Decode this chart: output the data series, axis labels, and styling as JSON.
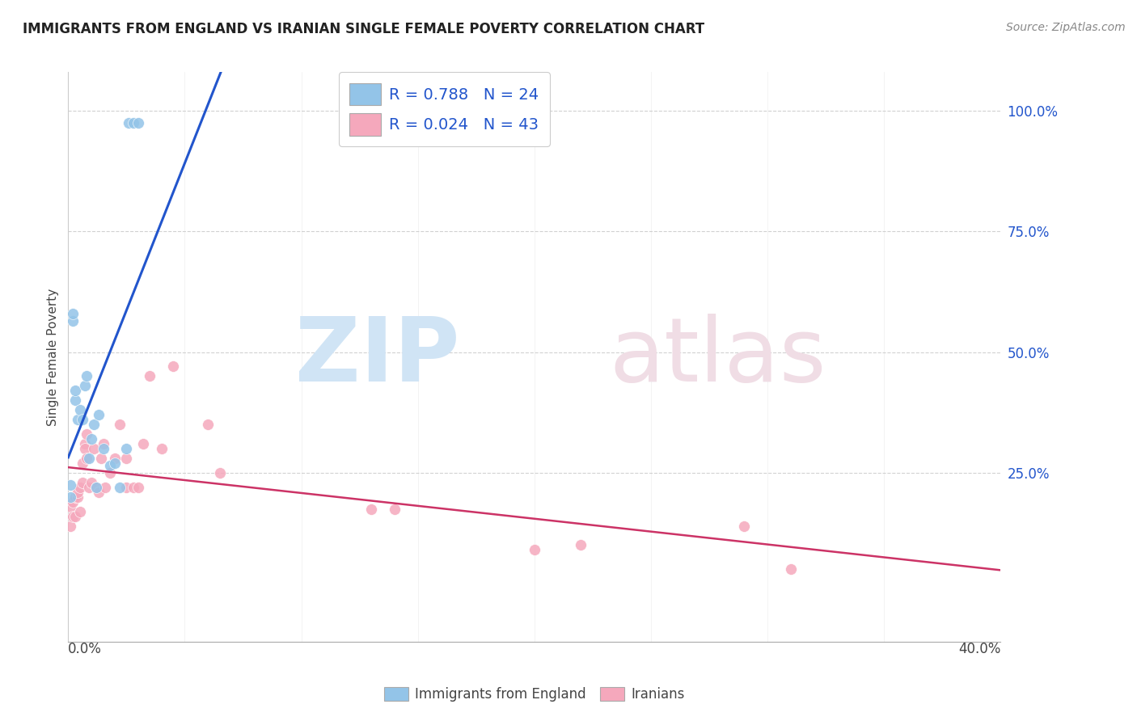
{
  "title": "IMMIGRANTS FROM ENGLAND VS IRANIAN SINGLE FEMALE POVERTY CORRELATION CHART",
  "source": "Source: ZipAtlas.com",
  "ylabel": "Single Female Poverty",
  "blue_R": "0.788",
  "blue_N": "24",
  "pink_R": "0.024",
  "pink_N": "43",
  "blue_color": "#93c4e8",
  "pink_color": "#f5a8bc",
  "blue_line_color": "#2255cc",
  "pink_line_color": "#cc3366",
  "legend_R_color": "#2255cc",
  "xmin": 0.0,
  "xmax": 0.4,
  "ymin": -0.1,
  "ymax": 1.08,
  "blue_scatter_x": [
    0.001,
    0.001,
    0.002,
    0.002,
    0.003,
    0.003,
    0.004,
    0.005,
    0.006,
    0.007,
    0.008,
    0.009,
    0.01,
    0.011,
    0.012,
    0.013,
    0.015,
    0.018,
    0.02,
    0.022,
    0.025,
    0.026,
    0.028,
    0.03
  ],
  "blue_scatter_y": [
    0.225,
    0.2,
    0.565,
    0.58,
    0.4,
    0.42,
    0.36,
    0.38,
    0.36,
    0.43,
    0.45,
    0.28,
    0.32,
    0.35,
    0.22,
    0.37,
    0.3,
    0.265,
    0.27,
    0.22,
    0.3,
    0.975,
    0.975,
    0.975
  ],
  "pink_scatter_x": [
    0.001,
    0.001,
    0.002,
    0.002,
    0.003,
    0.003,
    0.004,
    0.004,
    0.005,
    0.005,
    0.006,
    0.006,
    0.007,
    0.007,
    0.008,
    0.008,
    0.009,
    0.01,
    0.011,
    0.012,
    0.013,
    0.014,
    0.015,
    0.016,
    0.018,
    0.02,
    0.022,
    0.025,
    0.025,
    0.028,
    0.03,
    0.032,
    0.035,
    0.04,
    0.045,
    0.06,
    0.065,
    0.13,
    0.14,
    0.2,
    0.22,
    0.29,
    0.31
  ],
  "pink_scatter_y": [
    0.18,
    0.14,
    0.16,
    0.19,
    0.16,
    0.2,
    0.2,
    0.21,
    0.22,
    0.17,
    0.23,
    0.27,
    0.31,
    0.3,
    0.33,
    0.28,
    0.22,
    0.23,
    0.3,
    0.22,
    0.21,
    0.28,
    0.31,
    0.22,
    0.25,
    0.28,
    0.35,
    0.22,
    0.28,
    0.22,
    0.22,
    0.31,
    0.45,
    0.3,
    0.47,
    0.35,
    0.25,
    0.175,
    0.175,
    0.09,
    0.1,
    0.14,
    0.05
  ],
  "ytick_vals": [
    0.25,
    0.5,
    0.75,
    1.0
  ],
  "ytick_labels": [
    "25.0%",
    "50.0%",
    "75.0%",
    "100.0%"
  ]
}
